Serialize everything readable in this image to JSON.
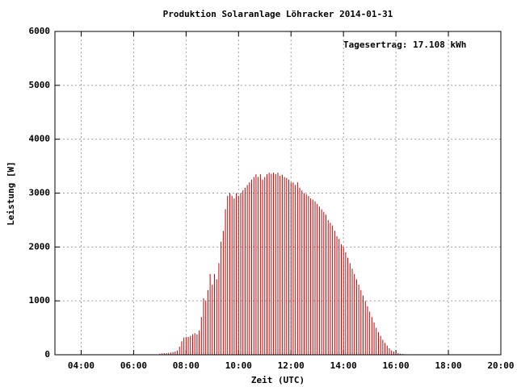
{
  "chart_data": {
    "type": "impulse",
    "title": "Produktion Solaranlage Löhracker 2014-01-31",
    "annotation": "Tagesertrag: 17.108 kWh",
    "x_label": "Zeit (UTC)",
    "y_label": "Leistung [W]",
    "color": "#cc0000",
    "grid": true,
    "xlim": [
      180,
      1200
    ],
    "ylim": [
      0,
      6000
    ],
    "xticks": [
      {
        "value": 240,
        "label": "04:00"
      },
      {
        "value": 360,
        "label": "06:00"
      },
      {
        "value": 480,
        "label": "08:00"
      },
      {
        "value": 600,
        "label": "10:00"
      },
      {
        "value": 720,
        "label": "12:00"
      },
      {
        "value": 840,
        "label": "14:00"
      },
      {
        "value": 960,
        "label": "16:00"
      },
      {
        "value": 1080,
        "label": "18:00"
      },
      {
        "value": 1200,
        "label": "20:00"
      }
    ],
    "yticks": [
      0,
      1000,
      2000,
      3000,
      4000,
      5000,
      6000
    ],
    "x": [
      420,
      425,
      430,
      435,
      440,
      445,
      450,
      455,
      460,
      465,
      470,
      475,
      480,
      485,
      490,
      495,
      500,
      505,
      510,
      515,
      520,
      525,
      530,
      535,
      540,
      545,
      550,
      555,
      560,
      565,
      570,
      575,
      580,
      585,
      590,
      595,
      600,
      605,
      610,
      615,
      620,
      625,
      630,
      635,
      640,
      645,
      650,
      655,
      660,
      665,
      670,
      675,
      680,
      685,
      690,
      695,
      700,
      705,
      710,
      715,
      720,
      725,
      730,
      735,
      740,
      745,
      750,
      755,
      760,
      765,
      770,
      775,
      780,
      785,
      790,
      795,
      800,
      805,
      810,
      815,
      820,
      825,
      830,
      835,
      840,
      845,
      850,
      855,
      860,
      865,
      870,
      875,
      880,
      885,
      890,
      895,
      900,
      905,
      910,
      915,
      920,
      925,
      930,
      935,
      940,
      945,
      950,
      955,
      960,
      965,
      970,
      975,
      980,
      985,
      990
    ],
    "values": [
      20,
      25,
      30,
      30,
      35,
      40,
      50,
      60,
      80,
      150,
      250,
      320,
      330,
      330,
      350,
      380,
      400,
      380,
      450,
      700,
      1050,
      1000,
      1200,
      1500,
      1300,
      1500,
      1400,
      1700,
      2100,
      2300,
      2700,
      2950,
      3000,
      2950,
      2900,
      3000,
      2950,
      3000,
      3050,
      3100,
      3150,
      3200,
      3250,
      3300,
      3350,
      3300,
      3350,
      3250,
      3300,
      3350,
      3380,
      3360,
      3380,
      3350,
      3380,
      3320,
      3340,
      3300,
      3280,
      3250,
      3200,
      3200,
      3150,
      3200,
      3100,
      3050,
      3000,
      2980,
      2950,
      2900,
      2880,
      2850,
      2800,
      2750,
      2700,
      2650,
      2600,
      2500,
      2450,
      2400,
      2300,
      2200,
      2150,
      2050,
      2000,
      1900,
      1800,
      1700,
      1600,
      1500,
      1400,
      1300,
      1200,
      1100,
      1000,
      900,
      800,
      700,
      600,
      500,
      420,
      350,
      280,
      220,
      170,
      120,
      80,
      60,
      40,
      30,
      20,
      15,
      10,
      8,
      5
    ]
  }
}
